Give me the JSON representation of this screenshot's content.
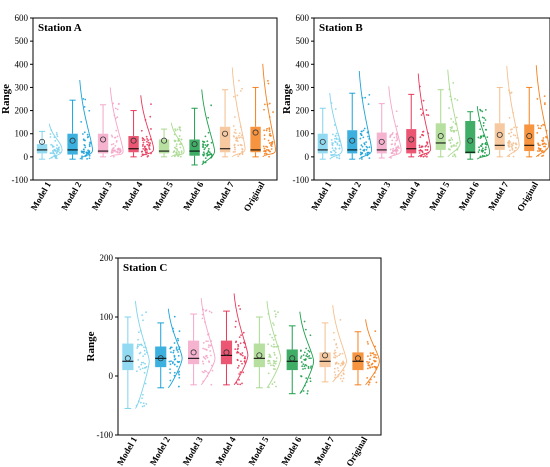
{
  "chart_data": [
    {
      "type": "box",
      "title": "Station A",
      "xlabel": "",
      "ylabel": "Range",
      "ylim": [
        -100,
        600
      ],
      "yticks": [
        -100,
        0,
        100,
        200,
        300,
        400,
        500,
        600
      ],
      "grid": false,
      "legend": "none",
      "categories": [
        "Model 1",
        "Model 2",
        "Model 3",
        "Model 4",
        "Model 5",
        "Model 6",
        "Model 7",
        "Original"
      ],
      "colors": [
        "#7fd3ee",
        "#1aa3d9",
        "#f4a6c8",
        "#e8385a",
        "#a9d98f",
        "#1e9f4c",
        "#f5bf8f",
        "#f5811f"
      ],
      "boxes": [
        {
          "q1": 15,
          "median": 30,
          "q3": 55,
          "whisker_low": -10,
          "whisker_high": 110,
          "mean": 65
        },
        {
          "q1": 10,
          "median": 30,
          "q3": 100,
          "whisker_low": -10,
          "whisker_high": 245,
          "mean": 70
        },
        {
          "q1": 15,
          "median": 25,
          "q3": 100,
          "whisker_low": 0,
          "whisker_high": 225,
          "mean": 75
        },
        {
          "q1": 20,
          "median": 35,
          "q3": 90,
          "whisker_low": 0,
          "whisker_high": 200,
          "mean": 70
        },
        {
          "q1": 15,
          "median": 25,
          "q3": 75,
          "whisker_low": 0,
          "whisker_high": 120,
          "mean": 70
        },
        {
          "q1": 5,
          "median": 25,
          "q3": 75,
          "whisker_low": -35,
          "whisker_high": 210,
          "mean": 55
        },
        {
          "q1": 20,
          "median": 35,
          "q3": 130,
          "whisker_low": 0,
          "whisker_high": 290,
          "mean": 100
        },
        {
          "q1": 20,
          "median": 30,
          "q3": 130,
          "whisker_low": 0,
          "whisker_high": 300,
          "mean": 105
        }
      ]
    },
    {
      "type": "box",
      "title": "Station B",
      "xlabel": "",
      "ylabel": "Range",
      "ylim": [
        -100,
        600
      ],
      "yticks": [
        -100,
        0,
        100,
        200,
        300,
        400,
        500,
        600
      ],
      "grid": false,
      "legend": "none",
      "categories": [
        "Model 1",
        "Model 2",
        "Model 3",
        "Model 4",
        "Model 5",
        "Model 6",
        "Model 7",
        "Original"
      ],
      "colors": [
        "#7fd3ee",
        "#1aa3d9",
        "#f4a6c8",
        "#e8385a",
        "#a9d98f",
        "#1e9f4c",
        "#f5bf8f",
        "#f5811f"
      ],
      "boxes": [
        {
          "q1": 15,
          "median": 30,
          "q3": 100,
          "whisker_low": -10,
          "whisker_high": 210,
          "mean": 65
        },
        {
          "q1": 15,
          "median": 30,
          "q3": 115,
          "whisker_low": -10,
          "whisker_high": 275,
          "mean": 70
        },
        {
          "q1": 15,
          "median": 30,
          "q3": 105,
          "whisker_low": -5,
          "whisker_high": 230,
          "mean": 65
        },
        {
          "q1": 15,
          "median": 35,
          "q3": 120,
          "whisker_low": 0,
          "whisker_high": 270,
          "mean": 75
        },
        {
          "q1": 30,
          "median": 60,
          "q3": 145,
          "whisker_low": 0,
          "whisker_high": 290,
          "mean": 90
        },
        {
          "q1": 15,
          "median": 20,
          "q3": 155,
          "whisker_low": -10,
          "whisker_high": 195,
          "mean": 70
        },
        {
          "q1": 30,
          "median": 50,
          "q3": 145,
          "whisker_low": 0,
          "whisker_high": 300,
          "mean": 95
        },
        {
          "q1": 25,
          "median": 50,
          "q3": 140,
          "whisker_low": 0,
          "whisker_high": 300,
          "mean": 90
        }
      ]
    },
    {
      "type": "box",
      "title": "Station C",
      "xlabel": "",
      "ylabel": "Range",
      "ylim": [
        -100,
        200
      ],
      "yticks": [
        -100,
        0,
        100,
        200
      ],
      "grid": false,
      "legend": "none",
      "categories": [
        "Model 1",
        "Model 2",
        "Model 3",
        "Model 4",
        "Model 5",
        "Model 6",
        "Model 7",
        "Original"
      ],
      "colors": [
        "#7fd3ee",
        "#1aa3d9",
        "#f4a6c8",
        "#e8385a",
        "#a9d98f",
        "#1e9f4c",
        "#f5bf8f",
        "#f5811f"
      ],
      "boxes": [
        {
          "q1": 10,
          "median": 25,
          "q3": 55,
          "whisker_low": -55,
          "whisker_high": 100,
          "mean": 30
        },
        {
          "q1": 15,
          "median": 30,
          "q3": 50,
          "whisker_low": -20,
          "whisker_high": 90,
          "mean": 30
        },
        {
          "q1": 20,
          "median": 30,
          "q3": 60,
          "whisker_low": -15,
          "whisker_high": 105,
          "mean": 40
        },
        {
          "q1": 20,
          "median": 35,
          "q3": 60,
          "whisker_low": -15,
          "whisker_high": 110,
          "mean": 40
        },
        {
          "q1": 15,
          "median": 30,
          "q3": 55,
          "whisker_low": -20,
          "whisker_high": 100,
          "mean": 35
        },
        {
          "q1": 10,
          "median": 25,
          "q3": 45,
          "whisker_low": -30,
          "whisker_high": 85,
          "mean": 30
        },
        {
          "q1": 15,
          "median": 25,
          "q3": 40,
          "whisker_low": -10,
          "whisker_high": 90,
          "mean": 35
        },
        {
          "q1": 10,
          "median": 25,
          "q3": 40,
          "whisker_low": -15,
          "whisker_high": 75,
          "mean": 30
        }
      ]
    }
  ]
}
